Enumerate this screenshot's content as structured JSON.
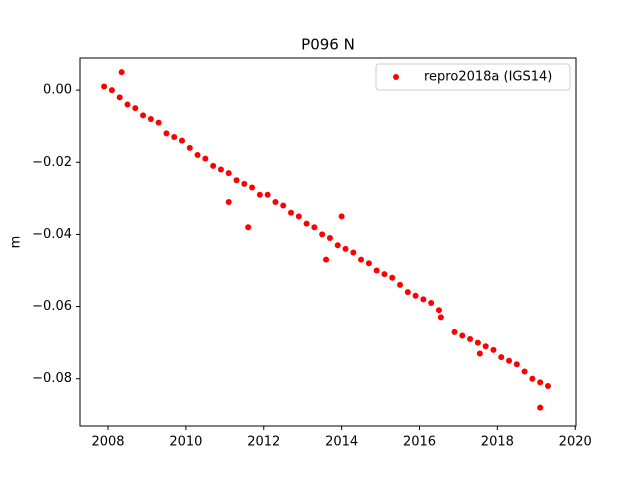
{
  "chart_data": {
    "type": "scatter",
    "title": "P096 N",
    "y_label": "m",
    "series": [
      {
        "name": "repro2018a (IGS14)",
        "color": "#ff0000",
        "x": [
          2007.9,
          2008.1,
          2008.3,
          2008.5,
          2008.7,
          2008.9,
          2009.1,
          2009.3,
          2009.5,
          2009.7,
          2009.9,
          2010.1,
          2010.3,
          2010.5,
          2010.7,
          2010.9,
          2011.1,
          2011.3,
          2011.5,
          2011.7,
          2011.9,
          2012.1,
          2012.3,
          2012.5,
          2012.7,
          2012.9,
          2013.1,
          2013.3,
          2013.5,
          2013.7,
          2013.9,
          2014.1,
          2014.3,
          2014.5,
          2014.7,
          2014.9,
          2015.1,
          2015.3,
          2015.5,
          2015.7,
          2015.9,
          2016.1,
          2016.3,
          2016.5,
          2016.9,
          2017.1,
          2017.3,
          2017.5,
          2017.7,
          2017.9,
          2018.1,
          2018.3,
          2018.5,
          2018.7,
          2018.9,
          2019.1,
          2019.3,
          2008.35,
          2011.1,
          2011.6,
          2014.0,
          2013.6,
          2019.1,
          2016.55,
          2017.55
        ],
        "values": [
          0.001,
          0.0,
          -0.002,
          -0.004,
          -0.005,
          -0.007,
          -0.008,
          -0.009,
          -0.012,
          -0.013,
          -0.014,
          -0.016,
          -0.018,
          -0.019,
          -0.021,
          -0.022,
          -0.023,
          -0.025,
          -0.026,
          -0.027,
          -0.029,
          -0.029,
          -0.031,
          -0.032,
          -0.034,
          -0.035,
          -0.037,
          -0.038,
          -0.04,
          -0.041,
          -0.043,
          -0.044,
          -0.045,
          -0.047,
          -0.048,
          -0.05,
          -0.051,
          -0.052,
          -0.054,
          -0.056,
          -0.057,
          -0.058,
          -0.059,
          -0.061,
          -0.067,
          -0.068,
          -0.069,
          -0.07,
          -0.071,
          -0.072,
          -0.074,
          -0.075,
          -0.076,
          -0.078,
          -0.08,
          -0.081,
          -0.082,
          0.005,
          -0.031,
          -0.038,
          -0.035,
          -0.047,
          -0.088,
          -0.063,
          -0.073
        ]
      }
    ],
    "xlim": [
      2007.28,
      2020.02
    ],
    "xticks": [
      2008,
      2010,
      2012,
      2014,
      2016,
      2018,
      2020
    ],
    "ylim": [
      -0.0931,
      0.0089
    ],
    "yticks": [
      {
        "value": 0.0,
        "label": "0.00"
      },
      {
        "value": -0.02,
        "label": "−0.02"
      },
      {
        "value": -0.04,
        "label": "−0.04"
      },
      {
        "value": -0.06,
        "label": "−0.06"
      },
      {
        "value": -0.08,
        "label": "−0.08"
      }
    ],
    "grid": false,
    "legend": "upper-right"
  }
}
